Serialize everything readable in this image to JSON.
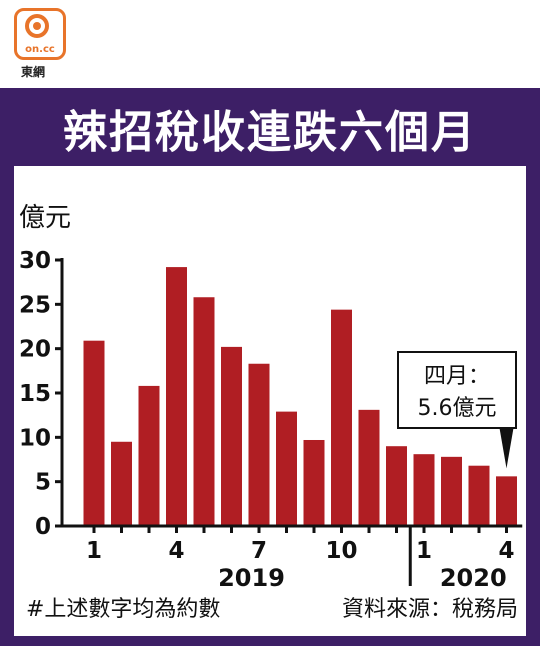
{
  "logo": {
    "mark_text": "on.cc",
    "label": "東網",
    "color": "#e8742a"
  },
  "header": {
    "title": "辣招稅收連跌六個月",
    "background": "#3d1f66"
  },
  "chart_data": {
    "type": "bar",
    "title": "辣招稅收連跌六個月",
    "ylabel": "億元",
    "ylim": [
      0,
      30
    ],
    "yticks": [
      0,
      5,
      10,
      15,
      20,
      25,
      30
    ],
    "bar_color": "#b01e23",
    "grid": false,
    "categories": [
      "2019-1",
      "2019-2",
      "2019-3",
      "2019-4",
      "2019-5",
      "2019-6",
      "2019-7",
      "2019-8",
      "2019-9",
      "2019-10",
      "2019-11",
      "2019-12",
      "2020-1",
      "2020-2",
      "2020-3",
      "2020-4"
    ],
    "values": [
      20.9,
      9.5,
      15.8,
      29.2,
      25.8,
      20.2,
      18.3,
      12.9,
      9.7,
      24.4,
      13.1,
      9.0,
      8.1,
      7.8,
      6.8,
      5.6
    ],
    "xtick_labels": [
      {
        "index": 0,
        "label": "1"
      },
      {
        "index": 3,
        "label": "4"
      },
      {
        "index": 6,
        "label": "7"
      },
      {
        "index": 9,
        "label": "10"
      },
      {
        "index": 12,
        "label": "1"
      },
      {
        "index": 15,
        "label": "4"
      }
    ],
    "year_labels": [
      {
        "label": "2019",
        "from": 0,
        "to": 11
      },
      {
        "label": "2020",
        "from": 12,
        "to": 15
      }
    ],
    "annotation": {
      "line1": "四月：",
      "line2": "5.6億元",
      "index": 15
    }
  },
  "footer": {
    "note": "#上述數字均為約數",
    "source": "資料來源：稅務局"
  }
}
